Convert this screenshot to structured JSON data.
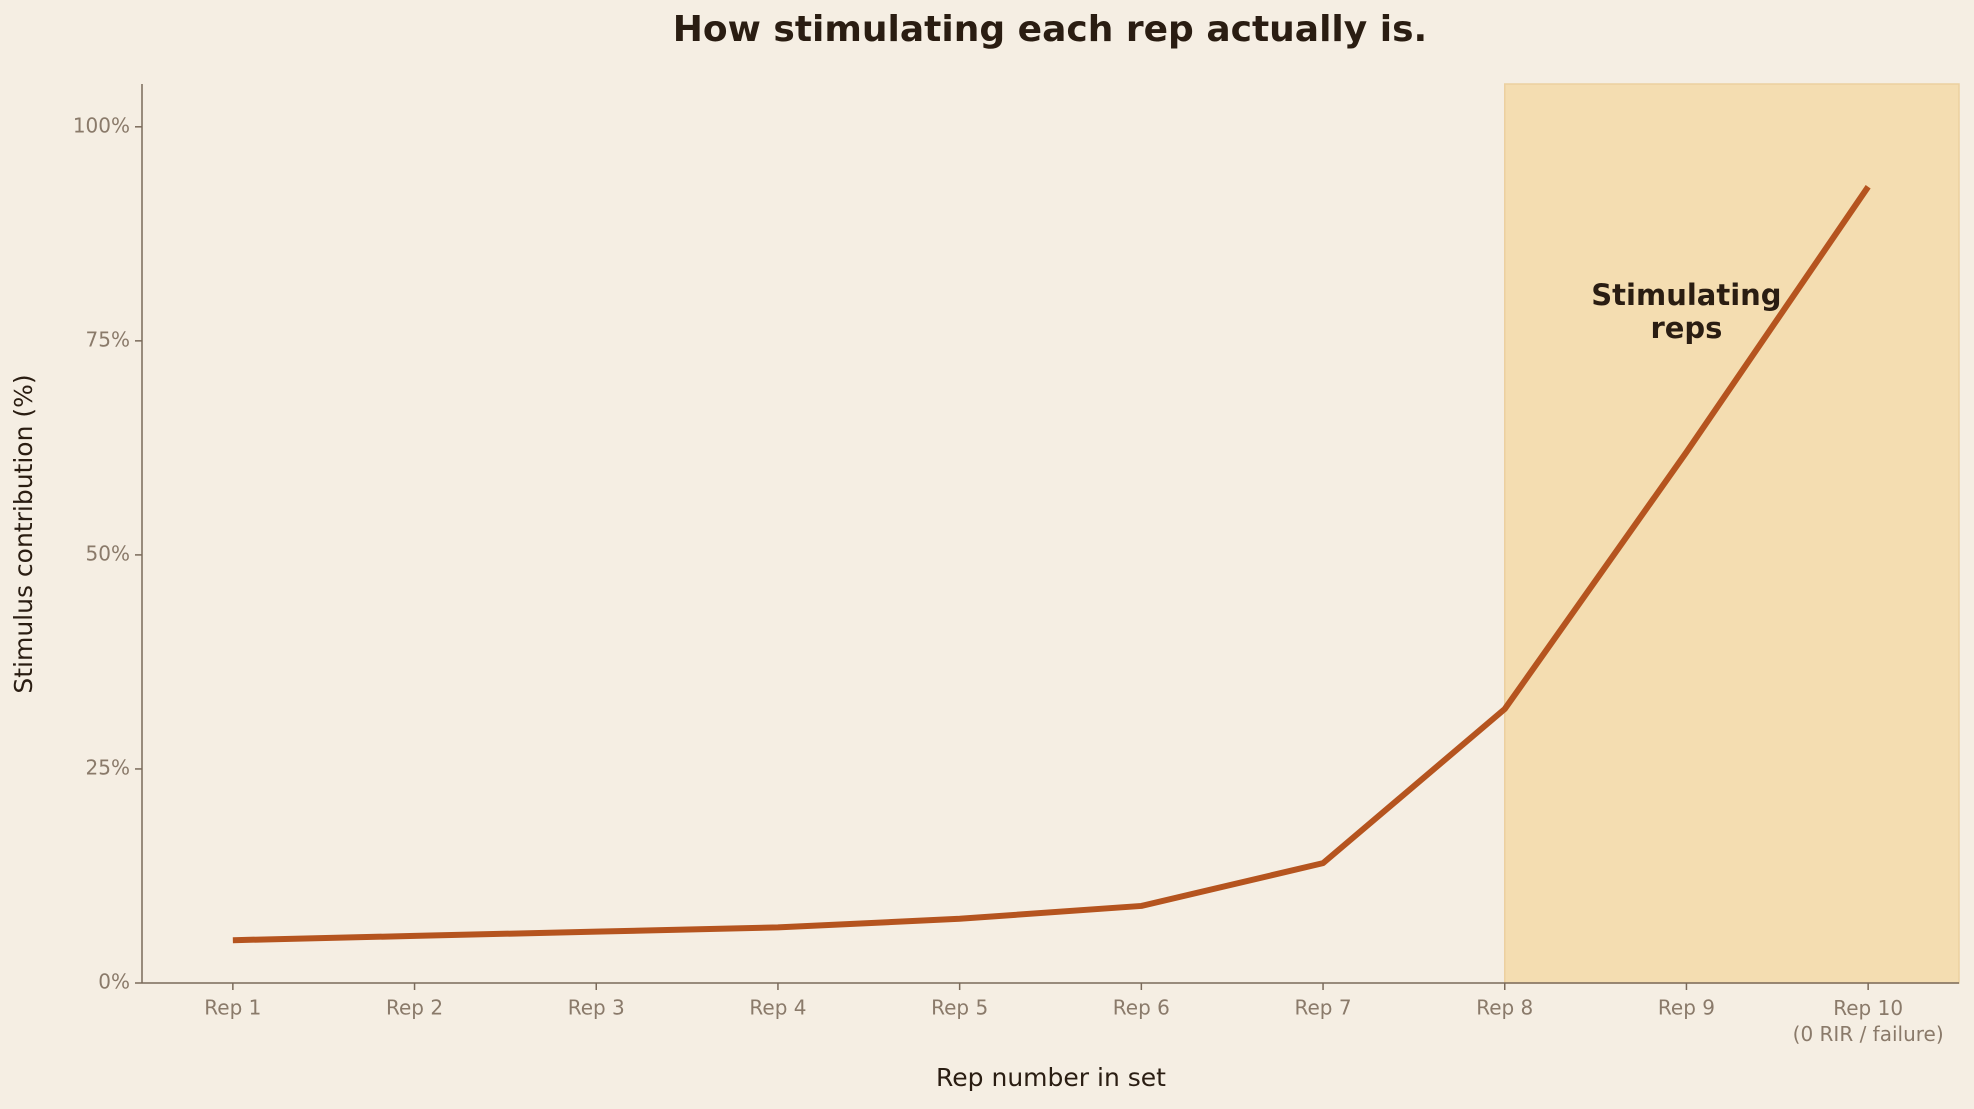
{
  "chart_data": {
    "type": "line",
    "title": "How stimulating each rep actually is.",
    "xlabel": "Rep number in set",
    "ylabel": "Stimulus contribution (%)",
    "categories": [
      "Rep 1",
      "Rep 2",
      "Rep 3",
      "Rep 4",
      "Rep 5",
      "Rep 6",
      "Rep 7",
      "Rep 8",
      "Rep 9",
      "Rep 10\n(0 RIR / failure)"
    ],
    "series": [
      {
        "name": "Stimulus contribution",
        "color": "#b5541f",
        "values": [
          5,
          5.5,
          6,
          6.5,
          7.5,
          9,
          14,
          32,
          62,
          93
        ]
      }
    ],
    "ylim": [
      0,
      105
    ],
    "yticks": [
      {
        "value": 0,
        "label": "0%"
      },
      {
        "value": 25,
        "label": "25%"
      },
      {
        "value": 50,
        "label": "50%"
      },
      {
        "value": 75,
        "label": "75%"
      },
      {
        "value": 100,
        "label": "100%"
      }
    ],
    "shade_from": 7,
    "shade_color": "#f4ddb1",
    "annotation": "Stimulating\nreps",
    "grid": false
  }
}
